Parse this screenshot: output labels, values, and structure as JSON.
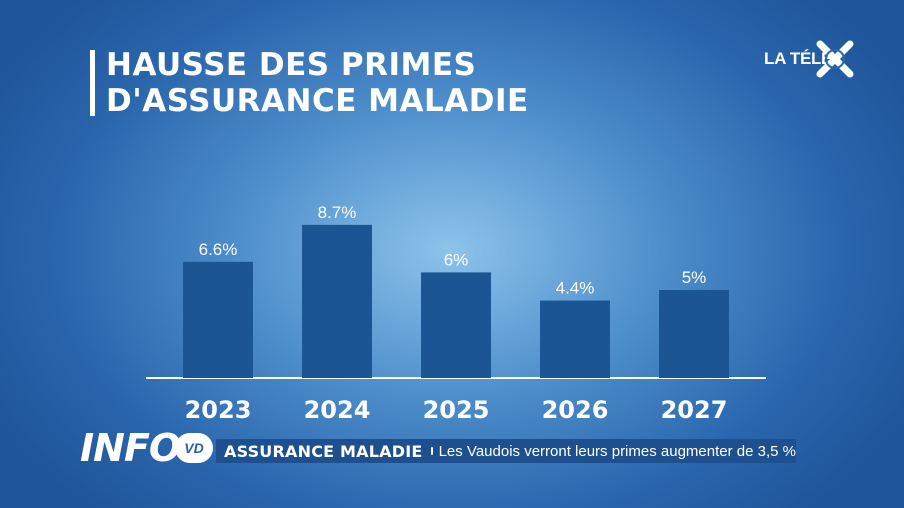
{
  "title": {
    "line1": "HAUSSE DES PRIMES",
    "line2": "D'ASSURANCE MALADIE"
  },
  "logo": {
    "text": "LA TÉLÉ",
    "icon": "x-logo-icon"
  },
  "chart_data": {
    "type": "bar",
    "title": "HAUSSE DES PRIMES D'ASSURANCE MALADIE",
    "categories": [
      "2023",
      "2024",
      "2025",
      "2026",
      "2027"
    ],
    "values": [
      6.6,
      8.7,
      6,
      4.4,
      5
    ],
    "labels": [
      "6.6%",
      "8.7%",
      "6%",
      "4.4%",
      "5%"
    ],
    "xlabel": "",
    "ylabel": "",
    "ylim": [
      0,
      10
    ],
    "grid": false,
    "bar_color": "#1c5594",
    "axis_color": "#ffffff"
  },
  "ticker": {
    "brand": "INFO",
    "badge": "VD",
    "topic": "ASSURANCE MALADIE",
    "text": "Les Vaudois verront leurs primes augmenter de 3,5 %"
  }
}
